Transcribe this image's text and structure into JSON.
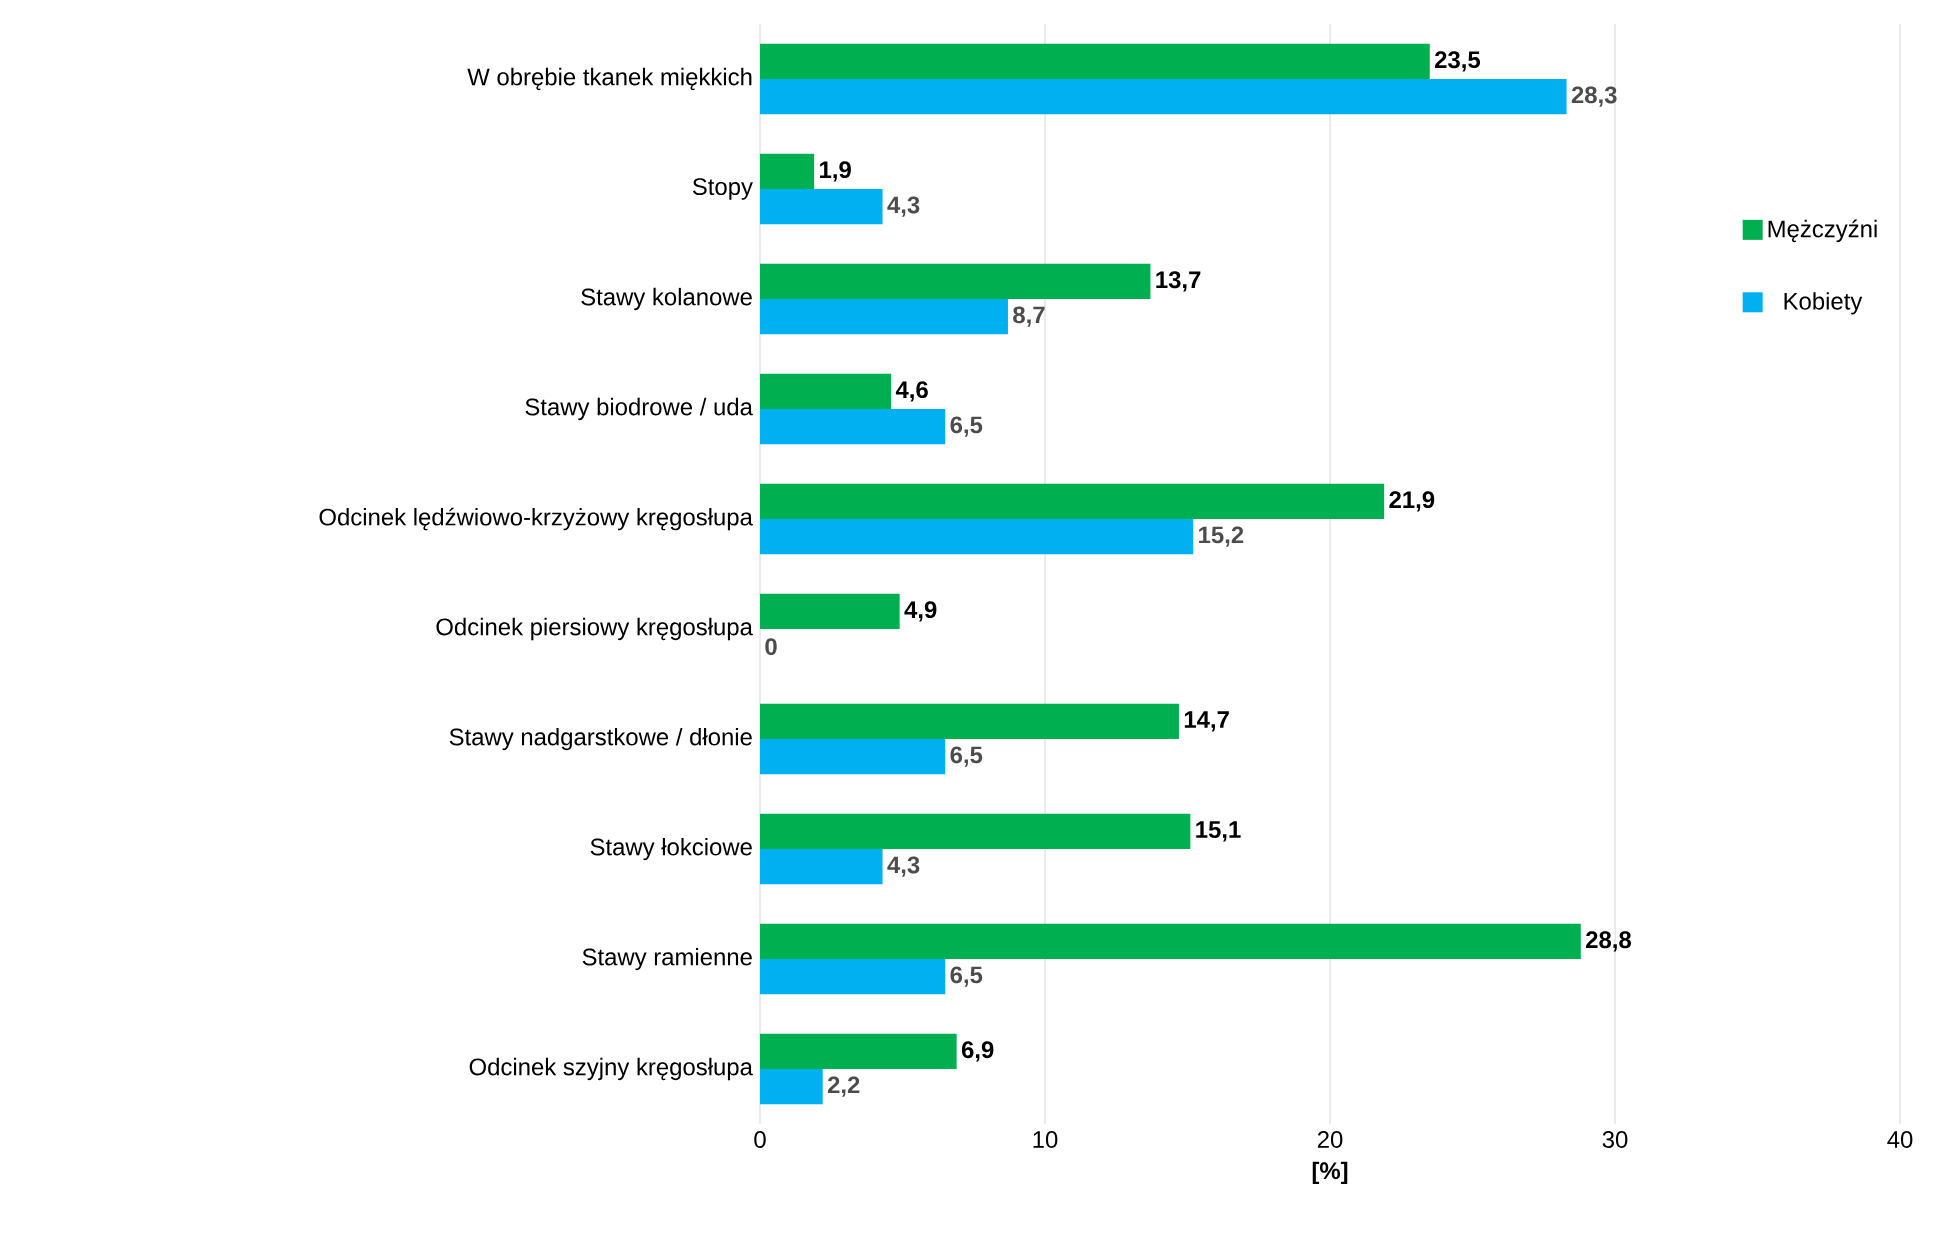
{
  "chart_data": {
    "type": "bar",
    "orientation": "horizontal",
    "xlabel": "[%]",
    "categories": [
      "W obrębie tkanek miękkich",
      "Stopy",
      "Stawy kolanowe",
      "Stawy biodrowe / uda",
      "Odcinek lędźwiowo-krzyżowy kręgosłupa",
      "Odcinek piersiowy kręgosłupa",
      "Stawy nadgarstkowe / dłonie",
      "Stawy łokciowe",
      "Stawy ramienne",
      "Odcinek szyjny kręgosłupa"
    ],
    "series": [
      {
        "name": "Mężczyźni",
        "color": "#00b050",
        "values": [
          23.5,
          1.9,
          13.7,
          4.6,
          21.9,
          4.9,
          14.7,
          15.1,
          28.8,
          6.9
        ],
        "value_labels": [
          "23,5",
          "1,9",
          "13,7",
          "4,6",
          "21,9",
          "4,9",
          "14,7",
          "15,1",
          "28,8",
          "6,9"
        ]
      },
      {
        "name": "Kobiety",
        "color": "#00b0f0",
        "values": [
          28.3,
          4.3,
          8.7,
          6.5,
          15.2,
          0,
          6.5,
          4.3,
          6.5,
          2.2
        ],
        "value_labels": [
          "28,3",
          "4,3",
          "8,7",
          "6,5",
          "15,2",
          "0",
          "6,5",
          "4,3",
          "6,5",
          "2,2"
        ]
      }
    ],
    "xlim": [
      0,
      40
    ],
    "xticks": [
      0,
      10,
      20,
      30,
      40
    ],
    "grid": "x",
    "legend": "right"
  }
}
